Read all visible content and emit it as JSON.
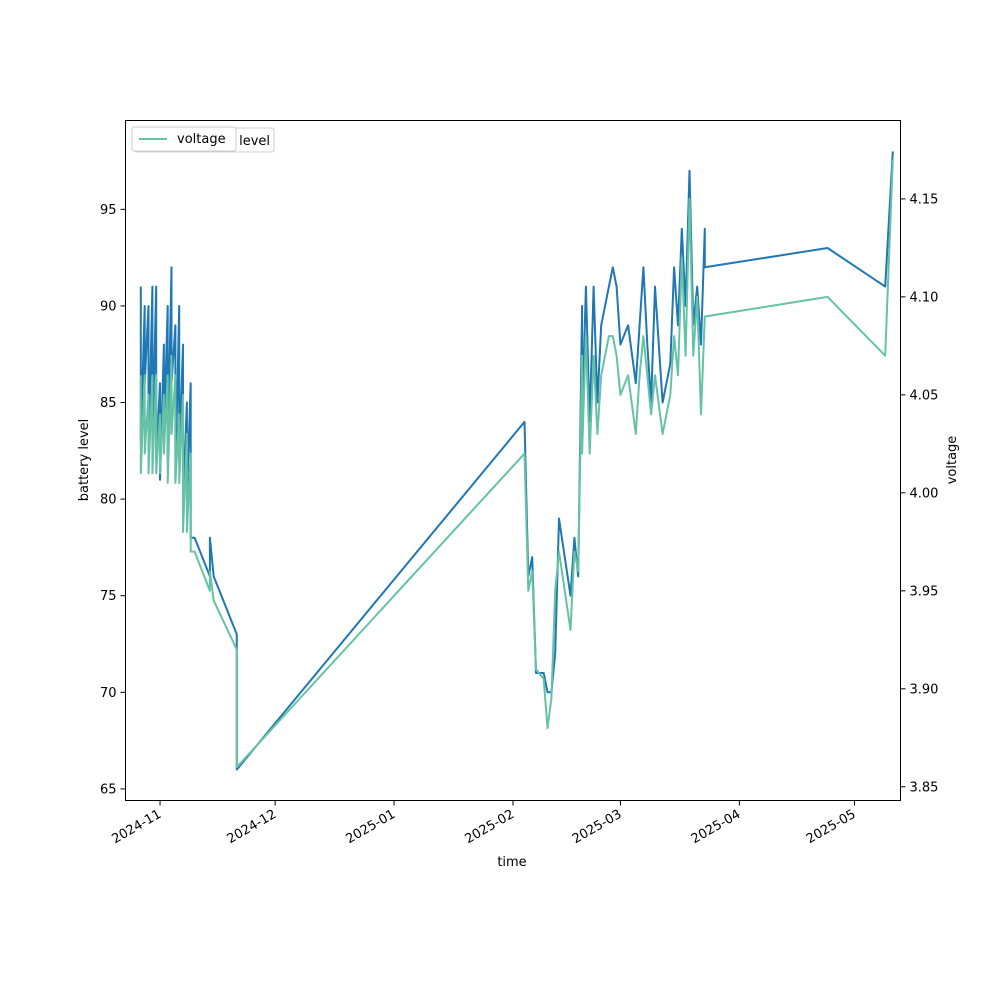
{
  "chart_data": {
    "type": "line",
    "title": "",
    "xlabel": "time",
    "ylabel_left": "battery level",
    "ylabel_right": "voltage",
    "x_ticks": [
      "2024-11",
      "2024-12",
      "2025-01",
      "2025-02",
      "2025-03",
      "2025-04",
      "2025-05"
    ],
    "x_range": [
      "2024-10-23",
      "2025-05-13"
    ],
    "ylim_left": [
      64.4,
      99.6
    ],
    "yticks_left": [
      65,
      70,
      75,
      80,
      85,
      90,
      95
    ],
    "ylim_right": [
      3.843,
      4.19
    ],
    "yticks_right": [
      3.85,
      3.9,
      3.95,
      4.0,
      4.05,
      4.1,
      4.15
    ],
    "grid": false,
    "legend": {
      "position": "top-left",
      "entries": [
        "level",
        "voltage"
      ]
    },
    "series": [
      {
        "name": "level",
        "axis": "left",
        "color": "#1f77b4",
        "points": [
          [
            "2024-10-27",
            91
          ],
          [
            "2024-10-27",
            83
          ],
          [
            "2024-10-28",
            90
          ],
          [
            "2024-10-28",
            86
          ],
          [
            "2024-10-29",
            90
          ],
          [
            "2024-10-29",
            82
          ],
          [
            "2024-10-30",
            91
          ],
          [
            "2024-10-30",
            83
          ],
          [
            "2024-10-31",
            91
          ],
          [
            "2024-10-31",
            82
          ],
          [
            "2024-11-01",
            86
          ],
          [
            "2024-11-01",
            81
          ],
          [
            "2024-11-02",
            88
          ],
          [
            "2024-11-02",
            83
          ],
          [
            "2024-11-03",
            90
          ],
          [
            "2024-11-03",
            82
          ],
          [
            "2024-11-04",
            92
          ],
          [
            "2024-11-04",
            86
          ],
          [
            "2024-11-05",
            89
          ],
          [
            "2024-11-05",
            81
          ],
          [
            "2024-11-06",
            90
          ],
          [
            "2024-11-06",
            82
          ],
          [
            "2024-11-07",
            88
          ],
          [
            "2024-11-07",
            80
          ],
          [
            "2024-11-08",
            85
          ],
          [
            "2024-11-08",
            80
          ],
          [
            "2024-11-09",
            86
          ],
          [
            "2024-11-09",
            78
          ],
          [
            "2024-11-10",
            78
          ],
          [
            "2024-11-14",
            76
          ],
          [
            "2024-11-14",
            78
          ],
          [
            "2024-11-15",
            76
          ],
          [
            "2024-11-21",
            73
          ],
          [
            "2024-11-21",
            66
          ],
          [
            "2025-02-04",
            84
          ],
          [
            "2025-02-05",
            76
          ],
          [
            "2025-02-06",
            77
          ],
          [
            "2025-02-07",
            71
          ],
          [
            "2025-02-09",
            71
          ],
          [
            "2025-02-10",
            70
          ],
          [
            "2025-02-11",
            70
          ],
          [
            "2025-02-12",
            72
          ],
          [
            "2025-02-13",
            79
          ],
          [
            "2025-02-16",
            75
          ],
          [
            "2025-02-17",
            78
          ],
          [
            "2025-02-18",
            76
          ],
          [
            "2025-02-19",
            90
          ],
          [
            "2025-02-19",
            84
          ],
          [
            "2025-02-20",
            91
          ],
          [
            "2025-02-21",
            84
          ],
          [
            "2025-02-22",
            91
          ],
          [
            "2025-02-23",
            85
          ],
          [
            "2025-02-24",
            89
          ],
          [
            "2025-02-26",
            91
          ],
          [
            "2025-02-27",
            92
          ],
          [
            "2025-02-28",
            91
          ],
          [
            "2025-03-01",
            88
          ],
          [
            "2025-03-03",
            89
          ],
          [
            "2025-03-05",
            86
          ],
          [
            "2025-03-06",
            89
          ],
          [
            "2025-03-07",
            92
          ],
          [
            "2025-03-08",
            88
          ],
          [
            "2025-03-09",
            85
          ],
          [
            "2025-03-10",
            91
          ],
          [
            "2025-03-12",
            85
          ],
          [
            "2025-03-14",
            87
          ],
          [
            "2025-03-15",
            92
          ],
          [
            "2025-03-16",
            89
          ],
          [
            "2025-03-17",
            94
          ],
          [
            "2025-03-18",
            90
          ],
          [
            "2025-03-19",
            97
          ],
          [
            "2025-03-20",
            89
          ],
          [
            "2025-03-21",
            91
          ],
          [
            "2025-03-22",
            88
          ],
          [
            "2025-03-23",
            94
          ],
          [
            "2025-03-23",
            92
          ],
          [
            "2025-04-24",
            93
          ],
          [
            "2025-05-09",
            91
          ],
          [
            "2025-05-11",
            98
          ]
        ]
      },
      {
        "name": "voltage",
        "axis": "right",
        "color": "#66c2a5",
        "points": [
          [
            "2024-10-27",
            4.06
          ],
          [
            "2024-10-27",
            4.01
          ],
          [
            "2024-10-28",
            4.06
          ],
          [
            "2024-10-28",
            4.02
          ],
          [
            "2024-10-29",
            4.05
          ],
          [
            "2024-10-29",
            4.01
          ],
          [
            "2024-10-30",
            4.06
          ],
          [
            "2024-10-30",
            4.01
          ],
          [
            "2024-10-31",
            4.06
          ],
          [
            "2024-10-31",
            4.01
          ],
          [
            "2024-11-01",
            4.04
          ],
          [
            "2024-11-01",
            4.01
          ],
          [
            "2024-11-02",
            4.05
          ],
          [
            "2024-11-02",
            4.02
          ],
          [
            "2024-11-03",
            4.06
          ],
          [
            "2024-11-03",
            4.005
          ],
          [
            "2024-11-04",
            4.07
          ],
          [
            "2024-11-04",
            4.03
          ],
          [
            "2024-11-05",
            4.06
          ],
          [
            "2024-11-05",
            4.005
          ],
          [
            "2024-11-06",
            4.04
          ],
          [
            "2024-11-06",
            4.005
          ],
          [
            "2024-11-07",
            4.05
          ],
          [
            "2024-11-07",
            3.98
          ],
          [
            "2024-11-08",
            4.03
          ],
          [
            "2024-11-08",
            3.98
          ],
          [
            "2024-11-09",
            4.02
          ],
          [
            "2024-11-09",
            3.97
          ],
          [
            "2024-11-10",
            3.97
          ],
          [
            "2024-11-14",
            3.95
          ],
          [
            "2024-11-14",
            3.96
          ],
          [
            "2024-11-15",
            3.945
          ],
          [
            "2024-11-21",
            3.92
          ],
          [
            "2024-11-21",
            3.86
          ],
          [
            "2025-02-04",
            4.02
          ],
          [
            "2025-02-05",
            3.95
          ],
          [
            "2025-02-06",
            3.96
          ],
          [
            "2025-02-07",
            3.91
          ],
          [
            "2025-02-09",
            3.905
          ],
          [
            "2025-02-10",
            3.88
          ],
          [
            "2025-02-11",
            3.895
          ],
          [
            "2025-02-12",
            3.95
          ],
          [
            "2025-02-13",
            3.97
          ],
          [
            "2025-02-16",
            3.93
          ],
          [
            "2025-02-17",
            3.97
          ],
          [
            "2025-02-18",
            3.96
          ],
          [
            "2025-02-19",
            4.07
          ],
          [
            "2025-02-19",
            4.02
          ],
          [
            "2025-02-20",
            4.08
          ],
          [
            "2025-02-21",
            4.02
          ],
          [
            "2025-02-22",
            4.07
          ],
          [
            "2025-02-23",
            4.03
          ],
          [
            "2025-02-24",
            4.06
          ],
          [
            "2025-02-26",
            4.08
          ],
          [
            "2025-02-27",
            4.08
          ],
          [
            "2025-02-28",
            4.07
          ],
          [
            "2025-03-01",
            4.05
          ],
          [
            "2025-03-03",
            4.06
          ],
          [
            "2025-03-05",
            4.03
          ],
          [
            "2025-03-06",
            4.06
          ],
          [
            "2025-03-07",
            4.08
          ],
          [
            "2025-03-08",
            4.06
          ],
          [
            "2025-03-09",
            4.04
          ],
          [
            "2025-03-10",
            4.06
          ],
          [
            "2025-03-12",
            4.03
          ],
          [
            "2025-03-14",
            4.05
          ],
          [
            "2025-03-15",
            4.08
          ],
          [
            "2025-03-16",
            4.06
          ],
          [
            "2025-03-17",
            4.12
          ],
          [
            "2025-03-18",
            4.07
          ],
          [
            "2025-03-19",
            4.15
          ],
          [
            "2025-03-20",
            4.07
          ],
          [
            "2025-03-21",
            4.1
          ],
          [
            "2025-03-22",
            4.04
          ],
          [
            "2025-03-23",
            4.09
          ],
          [
            "2025-03-23",
            4.09
          ],
          [
            "2025-04-24",
            4.1
          ],
          [
            "2025-05-09",
            4.07
          ],
          [
            "2025-05-11",
            4.17
          ]
        ]
      }
    ]
  }
}
